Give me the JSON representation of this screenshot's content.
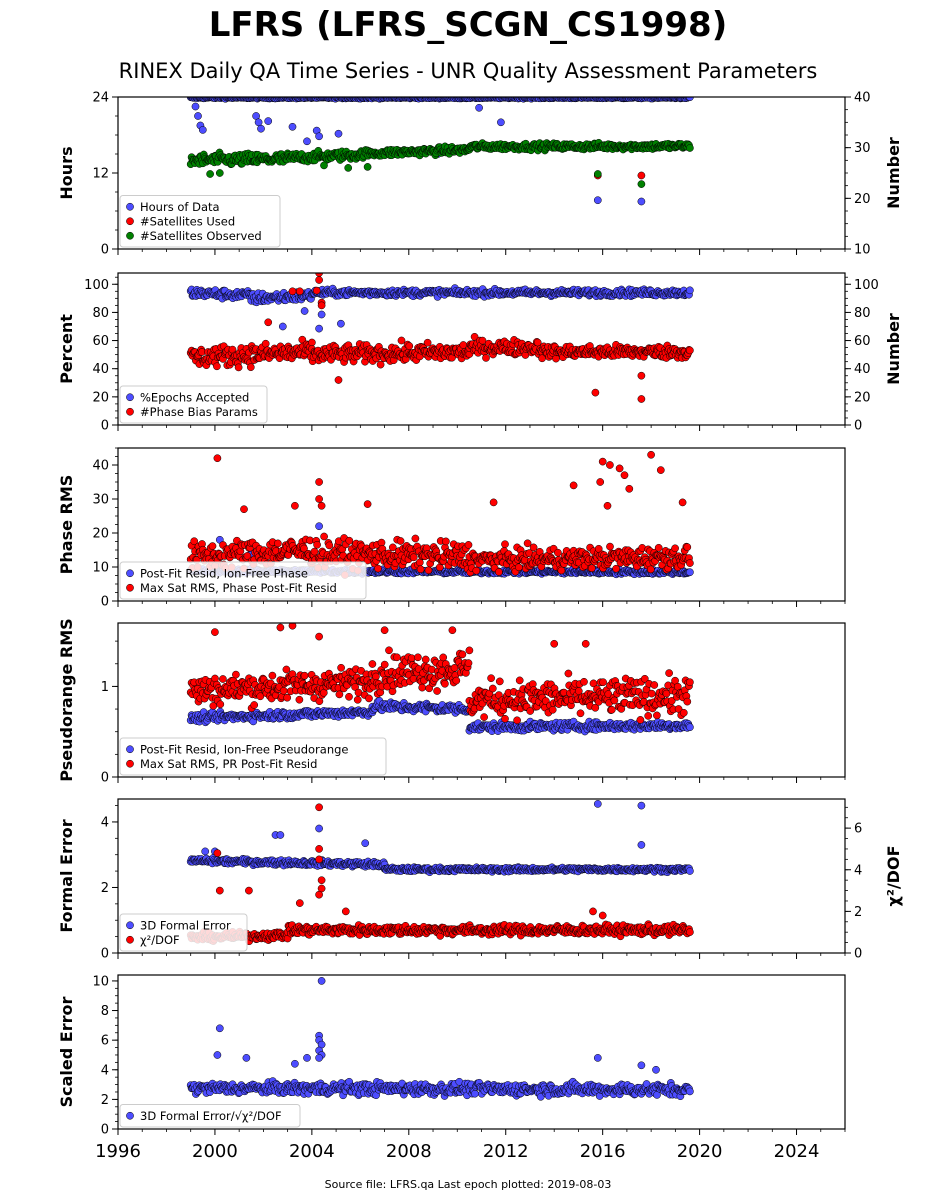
{
  "title": "LFRS (LFRS_SCGN_CS1998)",
  "subtitle": "RINEX Daily QA Time Series - UNR Quality Assessment Parameters",
  "source": "Source file: LFRS.qa Last epoch plotted: 2019-08-03",
  "colors": {
    "blue": "#4d4dff",
    "red": "#ff0000",
    "green": "#008000",
    "edge": "#000000"
  },
  "x_axis": {
    "min": 1996,
    "max": 2026,
    "ticks": [
      1996,
      2000,
      2004,
      2008,
      2012,
      2016,
      2020,
      2024
    ],
    "data_range": [
      1999.0,
      2019.6
    ]
  },
  "chart_data": [
    {
      "type": "scatter",
      "ylabel": "Hours",
      "ylim": [
        0,
        24
      ],
      "yticks": [
        0,
        12,
        24
      ],
      "ylabel_right": "Number",
      "ylim_right": [
        10,
        40
      ],
      "yticks_right": [
        10,
        20,
        30,
        40
      ],
      "legend": [
        "Hours of Data",
        "#Satellites Used",
        "#Satellites Observed"
      ],
      "series": [
        {
          "name": "Hours of Data",
          "color": "blue",
          "axis": "left",
          "segments": [
            {
              "x": [
                1999.0,
                2019.6
              ],
              "y": [
                23.9,
                23.9
              ],
              "jitter": 0.15
            }
          ],
          "outliers": [
            [
              1999.2,
              22.5
            ],
            [
              1999.3,
              21.0
            ],
            [
              1999.4,
              19.5
            ],
            [
              1999.5,
              18.8
            ],
            [
              2001.7,
              21.0
            ],
            [
              2001.8,
              20.0
            ],
            [
              2001.9,
              19.0
            ],
            [
              2002.2,
              20.2
            ],
            [
              2003.2,
              19.3
            ],
            [
              2003.8,
              17.0
            ],
            [
              2004.2,
              18.7
            ],
            [
              2004.3,
              17.8
            ],
            [
              2005.1,
              18.2
            ],
            [
              2010.9,
              22.3
            ],
            [
              2011.8,
              20.0
            ],
            [
              2015.8,
              7.7
            ],
            [
              2017.6,
              7.5
            ],
            [
              2009.2,
              15.0
            ]
          ]
        },
        {
          "name": "#Satellites Used",
          "color": "red",
          "axis": "right",
          "segments": [],
          "outliers": [
            [
              2015.8,
              24.5
            ],
            [
              2017.6,
              24.5
            ],
            [
              2009.7,
              30.0
            ]
          ]
        },
        {
          "name": "#Satellites Observed",
          "color": "green",
          "axis": "right",
          "segments": [
            {
              "x": [
                1999.0,
                2003.0
              ],
              "y": [
                27.5,
                27.8
              ],
              "jitter": 1.3
            },
            {
              "x": [
                2003.0,
                2006.0
              ],
              "y": [
                28.0,
                28.6
              ],
              "jitter": 1.0
            },
            {
              "x": [
                2006.0,
                2010.5
              ],
              "y": [
                28.8,
                29.6
              ],
              "jitter": 0.8
            },
            {
              "x": [
                2010.5,
                2019.6
              ],
              "y": [
                30.2,
                30.3
              ],
              "jitter": 0.7
            }
          ],
          "outliers": [
            [
              1999.8,
              24.8
            ],
            [
              2000.2,
              25.0
            ],
            [
              2005.5,
              26.0
            ],
            [
              2004.5,
              26.5
            ],
            [
              2006.3,
              26.2
            ],
            [
              2015.8,
              24.8
            ],
            [
              2017.6,
              22.8
            ]
          ]
        }
      ]
    },
    {
      "type": "scatter",
      "ylabel": "Percent",
      "ylim": [
        0,
        108
      ],
      "yticks": [
        0,
        20,
        40,
        60,
        80,
        100
      ],
      "ylabel_right": "Number",
      "ylim_right": [
        0,
        108
      ],
      "yticks_right": [
        0,
        20,
        40,
        60,
        80,
        100
      ],
      "legend": [
        "%Epochs Accepted",
        "#Phase Bias Params"
      ],
      "series": [
        {
          "name": "%Epochs Accepted",
          "color": "blue",
          "axis": "left",
          "segments": [
            {
              "x": [
                1999.0,
                2001.5
              ],
              "y": [
                94,
                92
              ],
              "jitter": 3.5
            },
            {
              "x": [
                2001.5,
                2004.0
              ],
              "y": [
                90,
                92
              ],
              "jitter": 4
            },
            {
              "x": [
                2004.0,
                2019.6
              ],
              "y": [
                94,
                94
              ],
              "jitter": 2.5
            }
          ],
          "outliers": [
            [
              2002.8,
              70.0
            ],
            [
              2003.7,
              81.0
            ],
            [
              2004.3,
              68.5
            ],
            [
              2005.2,
              72.0
            ],
            [
              2004.4,
              78.5
            ]
          ]
        },
        {
          "name": "#Phase Bias Params",
          "color": "red",
          "axis": "right",
          "segments": [
            {
              "x": [
                1999.0,
                2004.0
              ],
              "y": [
                48,
                52
              ],
              "jitter": 8
            },
            {
              "x": [
                2004.0,
                2010.5
              ],
              "y": [
                50,
                52
              ],
              "jitter": 7
            },
            {
              "x": [
                2010.5,
                2013.5
              ],
              "y": [
                55,
                55
              ],
              "jitter": 6
            },
            {
              "x": [
                2013.5,
                2019.6
              ],
              "y": [
                52,
                52
              ],
              "jitter": 5
            }
          ],
          "outliers": [
            [
              2004.3,
              108.0
            ],
            [
              2004.3,
              103.0
            ],
            [
              2003.2,
              95.0
            ],
            [
              2003.5,
              95.0
            ],
            [
              2004.2,
              95.5
            ],
            [
              2004.4,
              87.0
            ],
            [
              2004.4,
              85.0
            ],
            [
              2002.2,
              73.0
            ],
            [
              2005.1,
              32.0
            ],
            [
              2015.7,
              23.0
            ],
            [
              2017.6,
              35.0
            ],
            [
              2017.6,
              18.5
            ]
          ]
        }
      ]
    },
    {
      "type": "scatter",
      "ylabel": "Phase RMS",
      "ylim": [
        0,
        45
      ],
      "yticks": [
        0,
        10,
        20,
        30,
        40
      ],
      "legend": [
        "Post-Fit Resid, Ion-Free Phase",
        "Max Sat RMS, Phase Post-Fit Resid"
      ],
      "series": [
        {
          "name": "Post-Fit Resid, Ion-Free Phase",
          "color": "blue",
          "axis": "left",
          "segments": [
            {
              "x": [
                1999.0,
                2019.6
              ],
              "y": [
                8.8,
                8.5
              ],
              "jitter": 0.7
            }
          ],
          "outliers": [
            [
              2004.3,
              22.0
            ],
            [
              2000.2,
              18.0
            ],
            [
              2001.5,
              14.0
            ]
          ]
        },
        {
          "name": "Max Sat RMS, Phase Post-Fit Resid",
          "color": "red",
          "axis": "left",
          "segments": [
            {
              "x": [
                1999.0,
                2004.0
              ],
              "y": [
                13,
                15
              ],
              "jitter": 4.5
            },
            {
              "x": [
                2004.0,
                2010.5
              ],
              "y": [
                14,
                13
              ],
              "jitter": 4.5
            },
            {
              "x": [
                2010.5,
                2019.6
              ],
              "y": [
                12,
                13
              ],
              "jitter": 3.5
            }
          ],
          "outliers": [
            [
              2000.1,
              42.0
            ],
            [
              2004.3,
              35.0
            ],
            [
              2004.3,
              30.0
            ],
            [
              2004.4,
              28.0
            ],
            [
              2006.3,
              28.5
            ],
            [
              2011.5,
              29.0
            ],
            [
              2014.8,
              34.0
            ],
            [
              2016.0,
              41.0
            ],
            [
              2016.3,
              40.0
            ],
            [
              2016.7,
              39.0
            ],
            [
              2016.9,
              37.0
            ],
            [
              2017.1,
              33.0
            ],
            [
              2018.0,
              43.0
            ],
            [
              2018.4,
              38.5
            ],
            [
              2019.3,
              29.0
            ],
            [
              2015.9,
              35.0
            ],
            [
              2016.2,
              28.0
            ],
            [
              2001.2,
              27.0
            ],
            [
              2003.3,
              28.0
            ]
          ]
        }
      ]
    },
    {
      "type": "scatter",
      "ylabel": "Pseudorange RMS",
      "ylim": [
        0,
        1.7
      ],
      "yticks": [
        0,
        1
      ],
      "legend": [
        "Post-Fit Resid, Ion-Free Pseudorange",
        "Max Sat RMS, PR Post-Fit Resid"
      ],
      "series": [
        {
          "name": "Post-Fit Resid, Ion-Free Pseudorange",
          "color": "blue",
          "axis": "left",
          "segments": [
            {
              "x": [
                1999.0,
                2006.5
              ],
              "y": [
                0.65,
                0.72
              ],
              "jitter": 0.05
            },
            {
              "x": [
                2006.5,
                2010.5
              ],
              "y": [
                0.78,
                0.75
              ],
              "jitter": 0.06
            },
            {
              "x": [
                2010.5,
                2019.6
              ],
              "y": [
                0.55,
                0.57
              ],
              "jitter": 0.05
            }
          ],
          "outliers": []
        },
        {
          "name": "Max Sat RMS, PR Post-Fit Resid",
          "color": "red",
          "axis": "left",
          "segments": [
            {
              "x": [
                1999.0,
                2006.5
              ],
              "y": [
                0.95,
                1.05
              ],
              "jitter": 0.18
            },
            {
              "x": [
                2006.5,
                2010.5
              ],
              "y": [
                1.15,
                1.2
              ],
              "jitter": 0.22
            },
            {
              "x": [
                2010.5,
                2019.6
              ],
              "y": [
                0.85,
                0.9
              ],
              "jitter": 0.22
            }
          ],
          "outliers": [
            [
              2000.0,
              1.6
            ],
            [
              2002.7,
              1.65
            ],
            [
              2003.2,
              1.67
            ],
            [
              2004.3,
              1.55
            ],
            [
              2007.0,
              1.62
            ],
            [
              2009.8,
              1.62
            ],
            [
              2014.0,
              1.47
            ],
            [
              2015.3,
              1.47
            ]
          ]
        }
      ]
    },
    {
      "type": "scatter",
      "ylabel": "Formal Error",
      "ylim": [
        0,
        4.7
      ],
      "yticks": [
        0,
        2,
        4
      ],
      "ylabel_right": "χ²/DOF",
      "ylim_right": [
        0,
        7.4
      ],
      "yticks_right": [
        0,
        2,
        4,
        6
      ],
      "legend": [
        "3D Formal Error",
        "χ²/DOF"
      ],
      "series": [
        {
          "name": "3D Formal Error",
          "color": "blue",
          "axis": "left",
          "segments": [
            {
              "x": [
                1999.0,
                2007.0
              ],
              "y": [
                2.82,
                2.7
              ],
              "jitter": 0.09
            },
            {
              "x": [
                2007.0,
                2019.6
              ],
              "y": [
                2.55,
                2.55
              ],
              "jitter": 0.07
            }
          ],
          "outliers": [
            [
              2004.3,
              3.8
            ],
            [
              2002.5,
              3.6
            ],
            [
              2002.7,
              3.6
            ],
            [
              2006.2,
              3.35
            ],
            [
              2015.8,
              4.55
            ],
            [
              2017.6,
              4.5
            ],
            [
              2017.6,
              3.3
            ],
            [
              1999.6,
              3.1
            ],
            [
              2000.0,
              3.1
            ]
          ]
        },
        {
          "name": "χ²/DOF",
          "color": "red",
          "axis": "right",
          "segments": [
            {
              "x": [
                1999.0,
                2003.0
              ],
              "y": [
                0.75,
                0.85
              ],
              "jitter": 0.2
            },
            {
              "x": [
                2003.0,
                2019.6
              ],
              "y": [
                1.1,
                1.1
              ],
              "jitter": 0.25
            }
          ],
          "outliers": [
            [
              2004.3,
              7.0
            ],
            [
              2004.3,
              5.0
            ],
            [
              2000.1,
              4.8
            ],
            [
              2004.3,
              4.5
            ],
            [
              2004.4,
              3.5
            ],
            [
              2004.4,
              3.1
            ],
            [
              2004.3,
              2.8
            ],
            [
              2000.2,
              3.0
            ],
            [
              2001.4,
              3.0
            ],
            [
              2003.5,
              2.4
            ],
            [
              2005.4,
              2.0
            ],
            [
              2015.6,
              2.0
            ],
            [
              2016.0,
              1.8
            ]
          ]
        }
      ]
    },
    {
      "type": "scatter",
      "ylabel": "Scaled Error",
      "ylim": [
        0,
        10.4
      ],
      "yticks": [
        0,
        2,
        4,
        6,
        8,
        10
      ],
      "legend": [
        "3D Formal Error/√χ²/DOF"
      ],
      "series": [
        {
          "name": "3D Formal Error/√χ²/DOF",
          "color": "blue",
          "axis": "left",
          "segments": [
            {
              "x": [
                1999.0,
                2003.0
              ],
              "y": [
                2.75,
                2.75
              ],
              "jitter": 0.4
            },
            {
              "x": [
                2003.0,
                2019.6
              ],
              "y": [
                2.75,
                2.65
              ],
              "jitter": 0.45
            }
          ],
          "outliers": [
            [
              2004.4,
              10.0
            ],
            [
              2000.2,
              6.8
            ],
            [
              2000.1,
              5.0
            ],
            [
              2001.3,
              4.8
            ],
            [
              2004.3,
              6.3
            ],
            [
              2004.3,
              6.0
            ],
            [
              2004.4,
              5.7
            ],
            [
              2004.3,
              5.3
            ],
            [
              2004.4,
              5.0
            ],
            [
              2004.3,
              4.8
            ],
            [
              2003.8,
              4.8
            ],
            [
              2003.3,
              4.4
            ],
            [
              2015.8,
              4.8
            ],
            [
              2017.6,
              4.3
            ],
            [
              2018.2,
              4.0
            ]
          ]
        }
      ]
    }
  ]
}
